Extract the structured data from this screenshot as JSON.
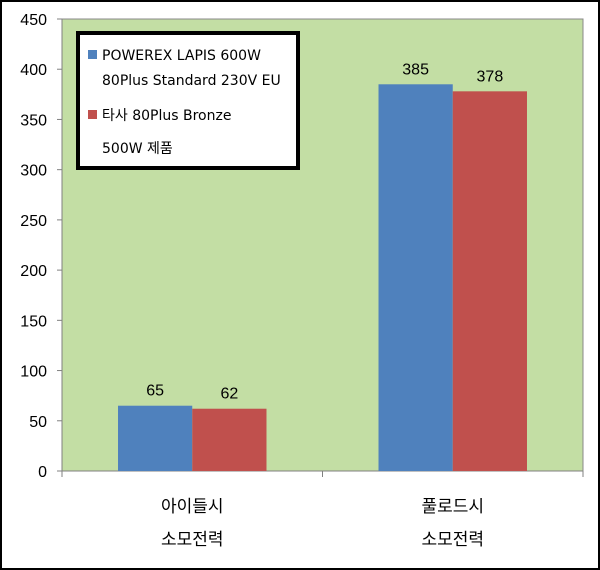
{
  "chart_data": {
    "type": "bar",
    "categories": [
      [
        "아이들시",
        "소모전력"
      ],
      [
        "풀로드시",
        "소모전력"
      ]
    ],
    "series": [
      {
        "name": [
          "POWEREX LAPIS 600W",
          "80Plus Standard 230V EU"
        ],
        "values": [
          65,
          385
        ],
        "color": "#4f81bd"
      },
      {
        "name": [
          "타사 80Plus Bronze",
          "500W 제품"
        ],
        "values": [
          62,
          378
        ],
        "color": "#c0504d"
      }
    ],
    "ylim": [
      0,
      450
    ],
    "yticks": [
      0,
      50,
      100,
      150,
      200,
      250,
      300,
      350,
      400,
      450
    ],
    "grid": false,
    "legend_position": "top-left",
    "plot_background": "#c3dea4"
  }
}
